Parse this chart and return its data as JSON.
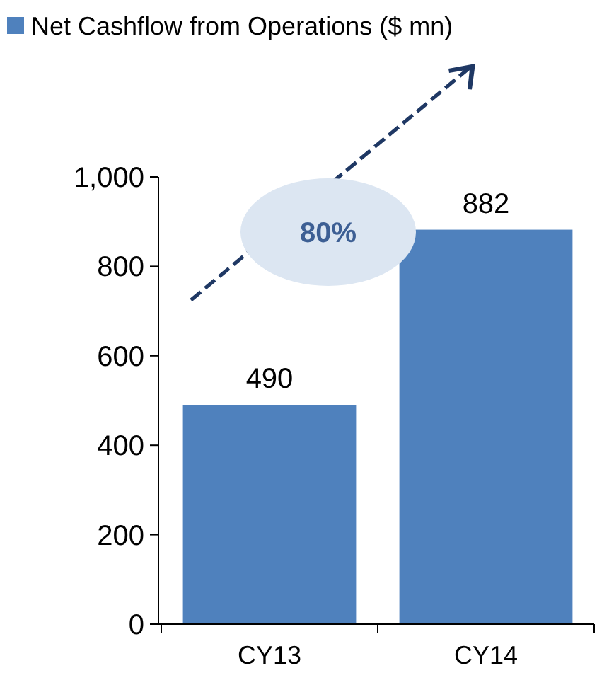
{
  "chart_data": {
    "type": "bar",
    "categories": [
      "CY13",
      "CY14"
    ],
    "series": [
      {
        "name": "Net Cashflow from Operations ($ mn)",
        "color": "#4f81bd",
        "values": [
          490,
          882
        ]
      }
    ],
    "ylim": [
      0,
      1000
    ],
    "yticks": [
      0,
      200,
      400,
      600,
      800,
      {
        "value": 1000,
        "label": "1,000"
      }
    ],
    "data_labels": true,
    "legend": "top",
    "grid": false,
    "annotations": [
      "80%"
    ]
  }
}
